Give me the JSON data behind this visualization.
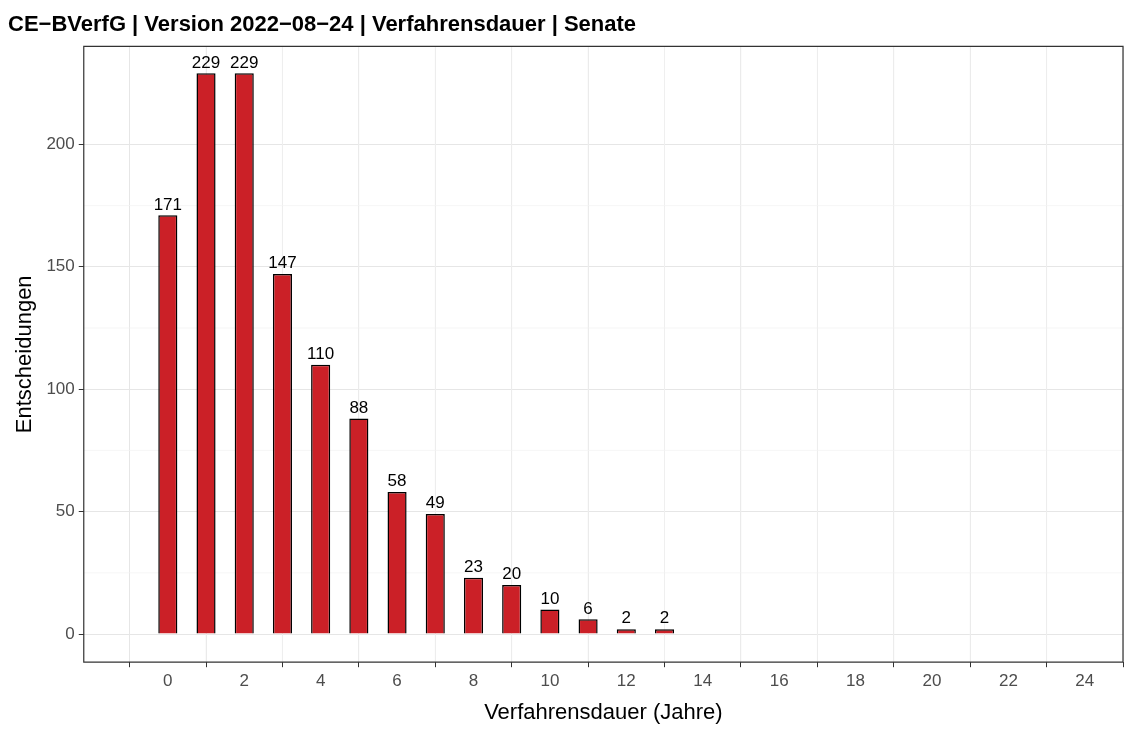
{
  "chart_data": {
    "type": "bar",
    "title": "CE−BVerfG | Version 2022−08−24 | Verfahrensdauer | Senate",
    "xlabel": "Verfahrensdauer (Jahre)",
    "ylabel": "Entscheidungen",
    "x": [
      0,
      1,
      2,
      3,
      4,
      5,
      6,
      7,
      8,
      9,
      10,
      11,
      12,
      13
    ],
    "values": [
      171,
      229,
      229,
      147,
      110,
      88,
      58,
      49,
      23,
      20,
      10,
      6,
      2,
      2
    ],
    "color": "#cb2027",
    "xlim": [
      -2.2,
      25
    ],
    "xticks": [
      0,
      2,
      4,
      6,
      8,
      10,
      12,
      14,
      16,
      18,
      20,
      22,
      24
    ],
    "ylim": [
      -11.5,
      240
    ],
    "yticks": [
      0,
      50,
      100,
      150,
      200
    ],
    "grid": true,
    "data_labels": true,
    "legend": false
  }
}
